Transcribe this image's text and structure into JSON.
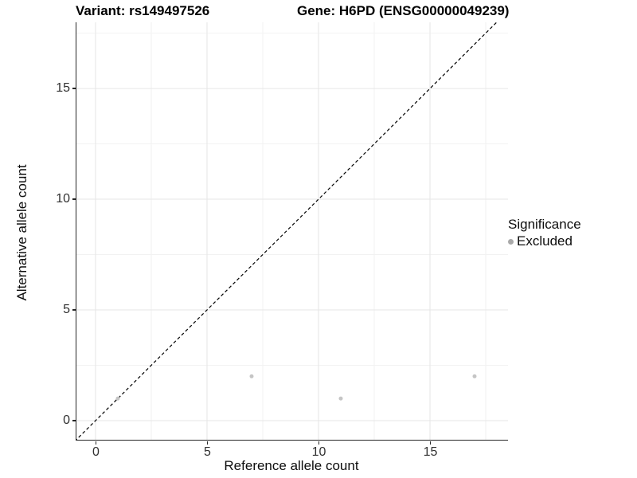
{
  "titles": {
    "variant": "Variant: rs149497526",
    "gene": "Gene: H6PD (ENSG00000049239)"
  },
  "chart_data": {
    "type": "scatter",
    "title_left": "Variant: rs149497526",
    "title_right": "Gene: H6PD (ENSG00000049239)",
    "xlabel": "Reference allele count",
    "ylabel": "Alternative allele count",
    "xlim": [
      -0.857,
      18.5
    ],
    "ylim": [
      -0.864,
      17.99
    ],
    "x_ticks": [
      0,
      5,
      10,
      15
    ],
    "y_ticks": [
      0,
      5,
      10,
      15
    ],
    "x_minor": [
      2.5,
      7.5,
      12.5,
      17.5
    ],
    "y_minor": [
      2.5,
      7.5,
      12.5,
      17.5
    ],
    "grid": "major+minor",
    "series": [
      {
        "name": "Excluded",
        "color": "#c5c5c5",
        "points": [
          {
            "x": 1,
            "y": 1
          },
          {
            "x": 7,
            "y": 2
          },
          {
            "x": 11,
            "y": 1
          },
          {
            "x": 17,
            "y": 2
          }
        ]
      }
    ],
    "reference_line": {
      "slope": 1,
      "intercept": 0,
      "style": "dashed",
      "color": "#000000"
    },
    "legend": {
      "title": "Significance",
      "position": "right",
      "entries": [
        {
          "label": "Excluded",
          "color": "#a9a9a9"
        }
      ]
    }
  },
  "style": {
    "major_grid_color": "#e6e6e6",
    "minor_grid_color": "#f2f2f2",
    "axis_color": "#262626",
    "point_radius": 2.5
  }
}
